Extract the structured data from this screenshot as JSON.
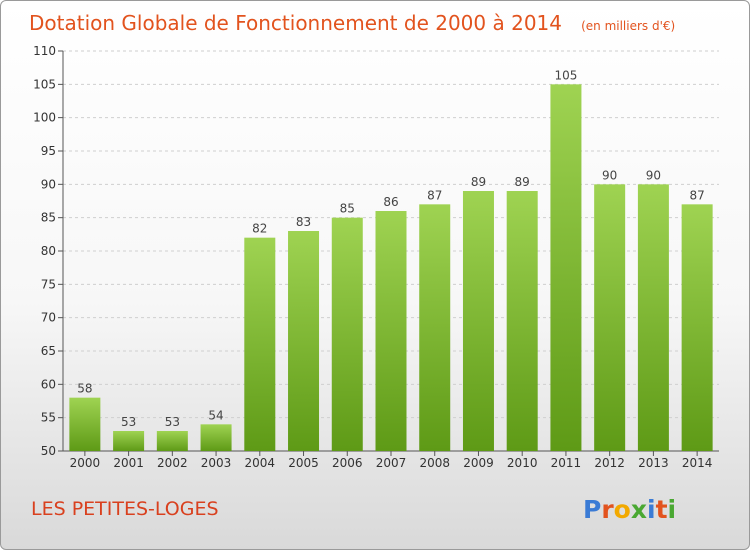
{
  "chart_data": {
    "type": "bar",
    "title": "Dotation Globale de Fonctionnement de 2000 à 2014",
    "unit": "(en milliers d'€)",
    "xlabel": "",
    "ylabel": "",
    "categories": [
      "2000",
      "2001",
      "2002",
      "2003",
      "2004",
      "2005",
      "2006",
      "2007",
      "2008",
      "2009",
      "2010",
      "2011",
      "2012",
      "2013",
      "2014"
    ],
    "values": [
      58,
      53,
      53,
      54,
      82,
      83,
      85,
      86,
      87,
      89,
      89,
      105,
      90,
      90,
      87
    ],
    "ylim": [
      50,
      110
    ],
    "yticks": [
      50,
      55,
      60,
      65,
      70,
      75,
      80,
      85,
      90,
      95,
      100,
      105,
      110
    ],
    "grid": true,
    "data_labels": true,
    "bar_color": "#7dbb2e"
  },
  "footer": {
    "commune": "LES PETITES-LOGES"
  },
  "logo": {
    "text": "Proxiti",
    "letters": [
      "P",
      "r",
      "o",
      "x",
      "i",
      "t",
      "i"
    ],
    "colors": [
      "#3a7bd5",
      "#e2531e",
      "#f2a900",
      "#4aa832",
      "#3a7bd5",
      "#e2531e",
      "#4aa832"
    ]
  }
}
